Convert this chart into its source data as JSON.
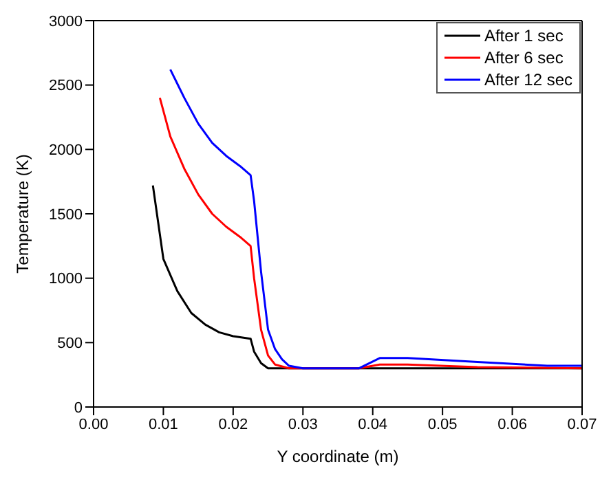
{
  "chart_data": {
    "type": "line",
    "xlabel": "Y coordinate (m)",
    "ylabel": "Temperature (K)",
    "xlim": [
      0,
      0.07
    ],
    "ylim": [
      0,
      3000
    ],
    "xticks": [
      {
        "value": 0,
        "label": "0.00"
      },
      {
        "value": 0.01,
        "label": "0.01"
      },
      {
        "value": 0.02,
        "label": "0.02"
      },
      {
        "value": 0.03,
        "label": "0.03"
      },
      {
        "value": 0.04,
        "label": "0.04"
      },
      {
        "value": 0.05,
        "label": "0.05"
      },
      {
        "value": 0.06,
        "label": "0.06"
      },
      {
        "value": 0.07,
        "label": "0.07"
      }
    ],
    "yticks": [
      0,
      500,
      1000,
      1500,
      2000,
      2500,
      3000
    ],
    "grid": false,
    "legend": "top right",
    "marker": "none",
    "line_style": "solid",
    "series": [
      {
        "name": "After 1 sec",
        "color": "#000000",
        "x": [
          0.0085,
          0.01,
          0.012,
          0.014,
          0.016,
          0.018,
          0.02,
          0.0225,
          0.023,
          0.024,
          0.025,
          0.04,
          0.05,
          0.06,
          0.07
        ],
        "values": [
          1720,
          1150,
          900,
          730,
          640,
          580,
          550,
          530,
          430,
          340,
          300,
          300,
          300,
          300,
          300
        ]
      },
      {
        "name": "After 6 sec",
        "color": "#ff0000",
        "x": [
          0.0095,
          0.011,
          0.013,
          0.015,
          0.017,
          0.019,
          0.021,
          0.0225,
          0.023,
          0.024,
          0.025,
          0.026,
          0.028,
          0.038,
          0.041,
          0.045,
          0.055,
          0.07
        ],
        "values": [
          2400,
          2100,
          1850,
          1650,
          1500,
          1400,
          1320,
          1250,
          1000,
          600,
          400,
          330,
          300,
          300,
          330,
          330,
          310,
          300
        ]
      },
      {
        "name": "After 12 sec",
        "color": "#0000ff",
        "x": [
          0.011,
          0.013,
          0.015,
          0.017,
          0.019,
          0.021,
          0.0225,
          0.023,
          0.024,
          0.025,
          0.026,
          0.027,
          0.028,
          0.03,
          0.038,
          0.041,
          0.045,
          0.055,
          0.065,
          0.07
        ],
        "values": [
          2620,
          2400,
          2200,
          2050,
          1950,
          1870,
          1800,
          1600,
          1050,
          600,
          450,
          370,
          320,
          300,
          300,
          380,
          380,
          350,
          320,
          320
        ]
      }
    ]
  }
}
